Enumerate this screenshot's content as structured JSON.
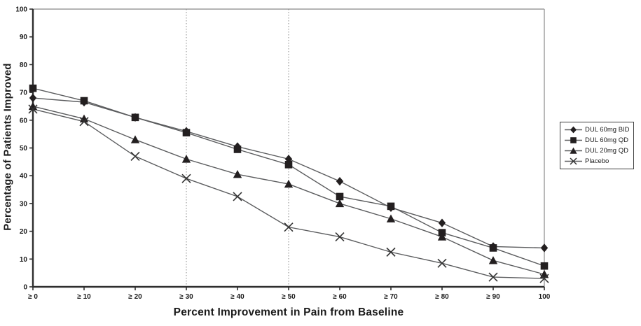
{
  "chart_data": {
    "type": "line",
    "xlabel": "Percent Improvement in Pain from Baseline",
    "ylabel": "Percentage of Patients Improved",
    "categories": [
      "≥ 0",
      "≥ 10",
      "≥ 20",
      "≥ 30",
      "≥ 40",
      "≥ 50",
      "≥ 60",
      "≥ 70",
      "≥ 80",
      "≥ 90",
      "100"
    ],
    "y_ticks": [
      0,
      10,
      20,
      30,
      40,
      50,
      60,
      70,
      80,
      90,
      100
    ],
    "ylim": [
      0,
      100
    ],
    "grid": "dotted vertical reference lines at ≥ 30 and ≥ 50",
    "grid_vlines_at": [
      "≥ 30",
      "≥ 50"
    ],
    "legend_position": "outside-right",
    "series": [
      {
        "name": "DUL 60mg BID",
        "marker": "diamond",
        "values": [
          68,
          66.5,
          61,
          56,
          50.5,
          46,
          38,
          28.5,
          23,
          14.5,
          14
        ]
      },
      {
        "name": "DUL 60mg QD",
        "marker": "square",
        "values": [
          71.5,
          67,
          61,
          55.5,
          49.5,
          44,
          32.5,
          29,
          19.5,
          14,
          7.5
        ]
      },
      {
        "name": "DUL 20mg QD",
        "marker": "triangle",
        "values": [
          65,
          60.5,
          53,
          46,
          40.5,
          37,
          30,
          24.5,
          18,
          9.5,
          4.5
        ]
      },
      {
        "name": "Placebo",
        "marker": "x",
        "values": [
          64,
          59.5,
          47,
          39,
          32.5,
          21.5,
          18,
          12.5,
          8.5,
          3.5,
          3
        ]
      }
    ],
    "colors": {
      "line": "#5b5c5e",
      "marker": "#231f20",
      "axis": "#2e2e2e",
      "tick_label": "#1a1a1a",
      "gridline": "#8a8a8a",
      "plot_border": "#9b9b9b",
      "background": "#ffffff"
    }
  }
}
